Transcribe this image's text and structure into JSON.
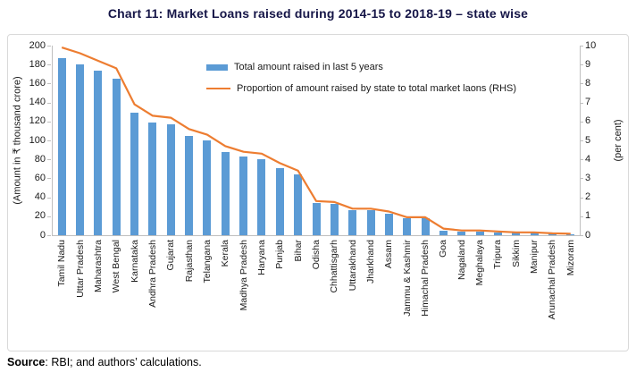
{
  "title": "Chart 11: Market Loans raised during 2014-15 to 2018-19 – state wise",
  "source": {
    "label": "Source",
    "rest": ": RBI; and authors’ calculations."
  },
  "legend": [
    {
      "type": "bar",
      "label": "Total amount raised in last 5 years"
    },
    {
      "type": "line",
      "label": "Proportion of amount raised by state to total market laons (RHS)"
    }
  ],
  "colors": {
    "bar": "#5B9BD5",
    "line": "#ED7D31",
    "title_text": "#151547",
    "axis_line": "#BFBFBF",
    "frame_border": "#D9D9D9",
    "text": "#1A1A1A"
  },
  "chart_data": {
    "type": "bar",
    "subtype": "combo-bar-line",
    "categories": [
      "Tamil Nadu",
      "Uttar Pradesh",
      "Maharashtra",
      "West Bengal",
      "Karnataka",
      "Andhra Pradesh",
      "Gujarat",
      "Rajasthan",
      "Telangana",
      "Kerala",
      "Madhya Pradesh",
      "Haryana",
      "Punjab",
      "Bihar",
      "Odisha",
      "Chhattisgarh",
      "Uttarakhand",
      "Jharkhand",
      "Assam",
      "Jammu & Kashmir",
      "Himachal Pradesh",
      "Goa",
      "Nagaland",
      "Meghalaya",
      "Tripura",
      "Sikkim",
      "Manipur",
      "Arunachal Pradesh",
      "Mizoram"
    ],
    "series": [
      {
        "name": "Total amount raised in last 5 years",
        "type": "bar",
        "axis": "left",
        "values": [
          187,
          180,
          174,
          165,
          129,
          119,
          117,
          105,
          100,
          88,
          83,
          80,
          71,
          64,
          34,
          33,
          26,
          26,
          23,
          18,
          18,
          5,
          3.5,
          3.5,
          3,
          2.5,
          2.5,
          1.5,
          1
        ]
      },
      {
        "name": "Proportion of amount raised by state to total market laons (RHS)",
        "type": "line",
        "axis": "right",
        "values": [
          9.9,
          9.6,
          9.2,
          8.8,
          6.9,
          6.3,
          6.2,
          5.6,
          5.3,
          4.7,
          4.4,
          4.3,
          3.8,
          3.4,
          1.8,
          1.75,
          1.4,
          1.4,
          1.25,
          0.95,
          0.95,
          0.35,
          0.25,
          0.25,
          0.2,
          0.15,
          0.15,
          0.1,
          0.08
        ]
      }
    ],
    "left_axis": {
      "label": "(Amount in ₹ thousand crore)",
      "min": 0,
      "max": 200,
      "step": 20
    },
    "right_axis": {
      "label": "(per cent)",
      "min": 0,
      "max": 10,
      "step": 1
    },
    "grid": false,
    "legend_position": "inside-top"
  }
}
